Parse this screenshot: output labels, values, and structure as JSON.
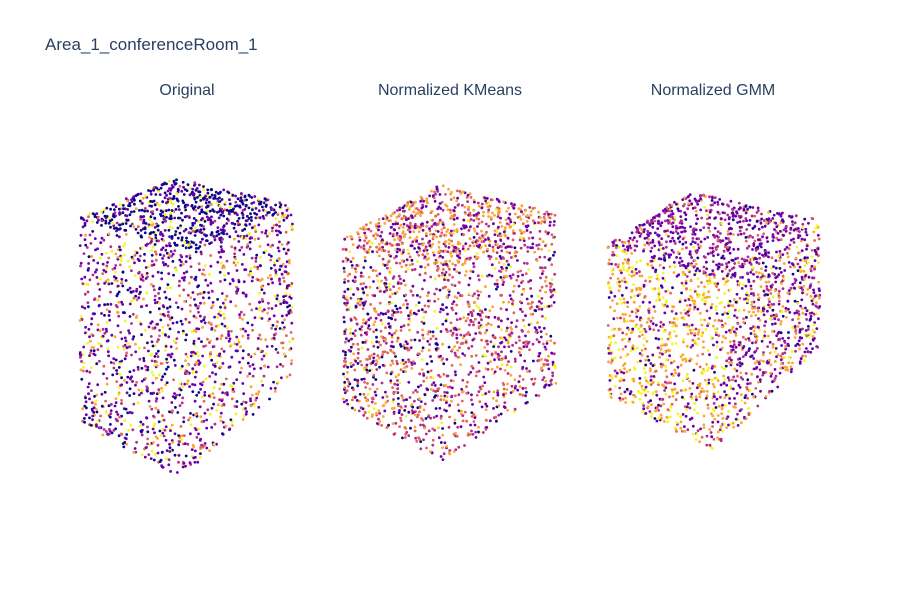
{
  "title": "Area_1_conferenceRoom_1",
  "panels": [
    {
      "title": "Original"
    },
    {
      "title": "Normalized KMeans"
    },
    {
      "title": "Normalized GMM"
    }
  ]
}
